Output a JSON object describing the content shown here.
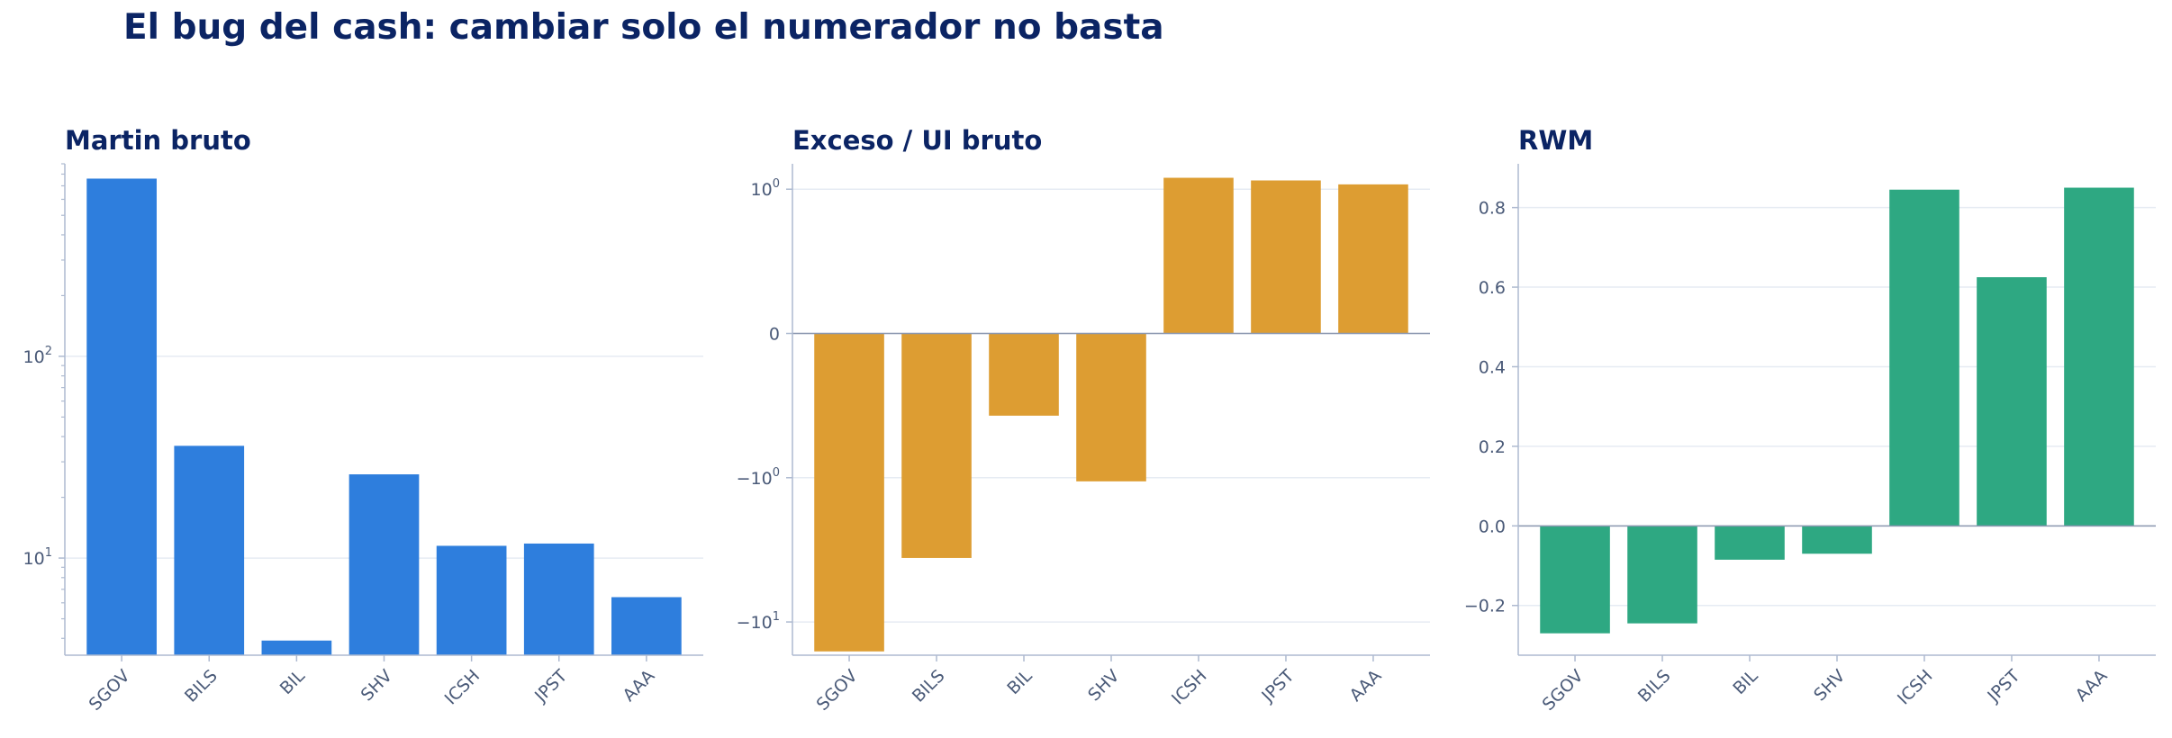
{
  "figure": {
    "title": "El bug del cash: cambiar solo el numerador no basta"
  },
  "colors": {
    "panel1": "#2a7bdc",
    "panel2": "#dc9b2e",
    "panel3": "#2aa67f",
    "axis": "#aebad0",
    "grid": "#e6ebf3",
    "text": "#4a5a78",
    "title": "#0b2464"
  },
  "chart_data": [
    {
      "type": "bar",
      "title": "Martin bruto",
      "yscale": "log",
      "categories": [
        "SGOV",
        "BILS",
        "BIL",
        "SHV",
        "ICSH",
        "JPST",
        "AAA"
      ],
      "values": [
        760,
        36,
        3.9,
        26,
        11.5,
        11.8,
        6.4
      ],
      "ylim": [
        3.3,
        900
      ],
      "yticks": [
        {
          "base": "10",
          "exp": "1",
          "value": 10
        },
        {
          "base": "10",
          "exp": "2",
          "value": 100
        }
      ],
      "grid": true,
      "legend": "none"
    },
    {
      "type": "bar",
      "title": "Exceso / UI bruto",
      "yscale": "symlog",
      "categories": [
        "SGOV",
        "BILS",
        "BIL",
        "SHV",
        "ICSH",
        "JPST",
        "AAA"
      ],
      "values": [
        -16,
        -3.6,
        -0.57,
        -1.06,
        1.2,
        1.15,
        1.08
      ],
      "ylim": [
        -17,
        1.5
      ],
      "yticks": [
        {
          "base": "10",
          "exp": "0",
          "value": 1
        },
        {
          "text": "0",
          "value": 0
        },
        {
          "base": "−10",
          "exp": "0",
          "value": -1
        },
        {
          "base": "−10",
          "exp": "1",
          "value": -10
        }
      ],
      "grid": true,
      "legend": "none"
    },
    {
      "type": "bar",
      "title": "RWM",
      "yscale": "linear",
      "categories": [
        "SGOV",
        "BILS",
        "BIL",
        "SHV",
        "ICSH",
        "JPST",
        "AAA"
      ],
      "values": [
        -0.27,
        -0.245,
        -0.085,
        -0.07,
        0.845,
        0.625,
        0.85
      ],
      "ylim": [
        -0.325,
        0.91
      ],
      "yticks": [
        {
          "text": "0.8",
          "value": 0.8
        },
        {
          "text": "0.6",
          "value": 0.6
        },
        {
          "text": "0.4",
          "value": 0.4
        },
        {
          "text": "0.2",
          "value": 0.2
        },
        {
          "text": "0.0",
          "value": 0.0
        },
        {
          "text": "−0.2",
          "value": -0.2
        }
      ],
      "grid": true,
      "legend": "none"
    }
  ]
}
